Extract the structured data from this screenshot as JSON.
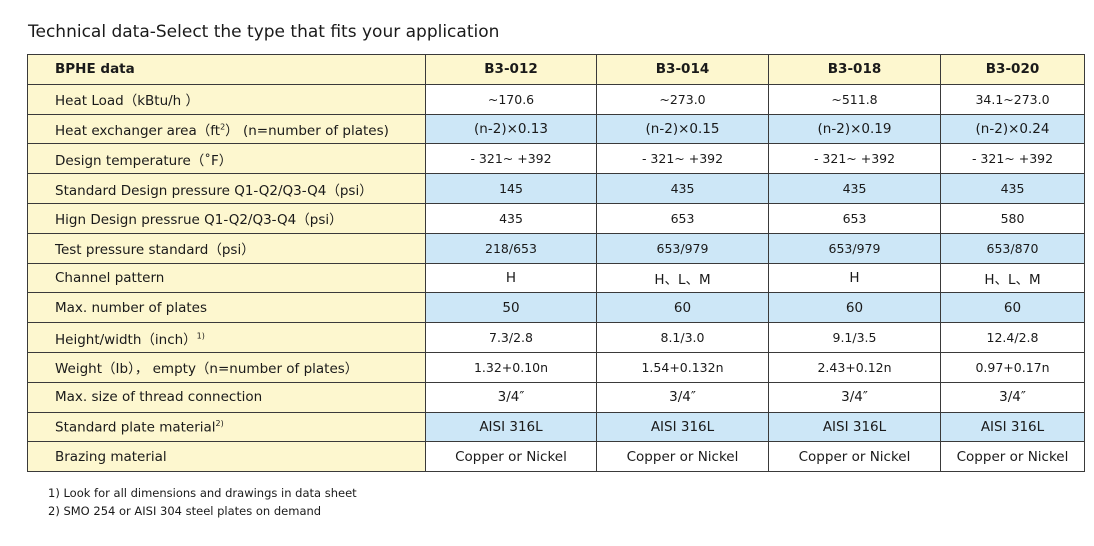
{
  "page_title": "Technical data-Select the type that fits your application",
  "table": {
    "header_label": "BPHE data",
    "models": [
      "B3-012",
      "B3-014",
      "B3-018",
      "B3-020"
    ],
    "rows": [
      {
        "label": "Heat Load（kBtu/h ）",
        "sup": "",
        "values": [
          "~170.6",
          "~273.0",
          "~511.8",
          "34.1~273.0"
        ]
      },
      {
        "label": "Heat exchanger area（ft",
        "sup": "2",
        "label_after": "） (n=number of plates)",
        "values": [
          "(n-2)×0.13",
          "(n-2)×0.15",
          "(n-2)×0.19",
          "(n-2)×0.24"
        ]
      },
      {
        "label": "Design temperature（˚F）",
        "sup": "",
        "values": [
          "- 321~ +392",
          "- 321~ +392",
          "- 321~ +392",
          "- 321~ +392"
        ]
      },
      {
        "label": "Standard Design pressure Q1-Q2/Q3-Q4（psi）",
        "sup": "",
        "values": [
          "145",
          "435",
          "435",
          "435"
        ]
      },
      {
        "label": "Hign Design pressrue Q1-Q2/Q3-Q4（psi）",
        "sup": "",
        "values": [
          "435",
          "653",
          "653",
          "580"
        ]
      },
      {
        "label": "Test pressure standard（psi）",
        "sup": "",
        "values": [
          "218/653",
          "653/979",
          "653/979",
          "653/870"
        ]
      },
      {
        "label": "Channel pattern",
        "sup": "",
        "values": [
          "H",
          "H、L、M",
          "H",
          "H、L、M"
        ]
      },
      {
        "label": "Max. number of plates",
        "sup": "",
        "values": [
          "50",
          "60",
          "60",
          "60"
        ]
      },
      {
        "label": "Height/width（inch）",
        "sup": "1)",
        "values": [
          "7.3/2.8",
          "8.1/3.0",
          "9.1/3.5",
          "12.4/2.8"
        ]
      },
      {
        "label": "Weight（Ib）， empty（n=number of plates）",
        "sup": "",
        "values": [
          "1.32+0.10n",
          "1.54+0.132n",
          "2.43+0.12n",
          "0.97+0.17n"
        ]
      },
      {
        "label": "Max. size of thread connection",
        "sup": "",
        "values": [
          "3/4″",
          "3/4″",
          "3/4″",
          "3/4″"
        ]
      },
      {
        "label": "Standard plate material",
        "sup": "2)",
        "values": [
          "AISI 316L",
          "AISI 316L",
          "AISI 316L",
          "AISI 316L"
        ]
      },
      {
        "label": "Brazing material",
        "sup": "",
        "values": [
          "Copper or Nickel",
          "Copper or Nickel",
          "Copper or Nickel",
          "Copper or Nickel"
        ]
      }
    ]
  },
  "footnotes": [
    "1) Look for all dimensions and drawings in data sheet",
    "2) SMO 254 or AISI 304 steel plates on demand"
  ],
  "colors": {
    "label_bg": "#fdf7cf",
    "shaded_row_bg": "#cde7f7",
    "border": "#3a3a3a"
  }
}
